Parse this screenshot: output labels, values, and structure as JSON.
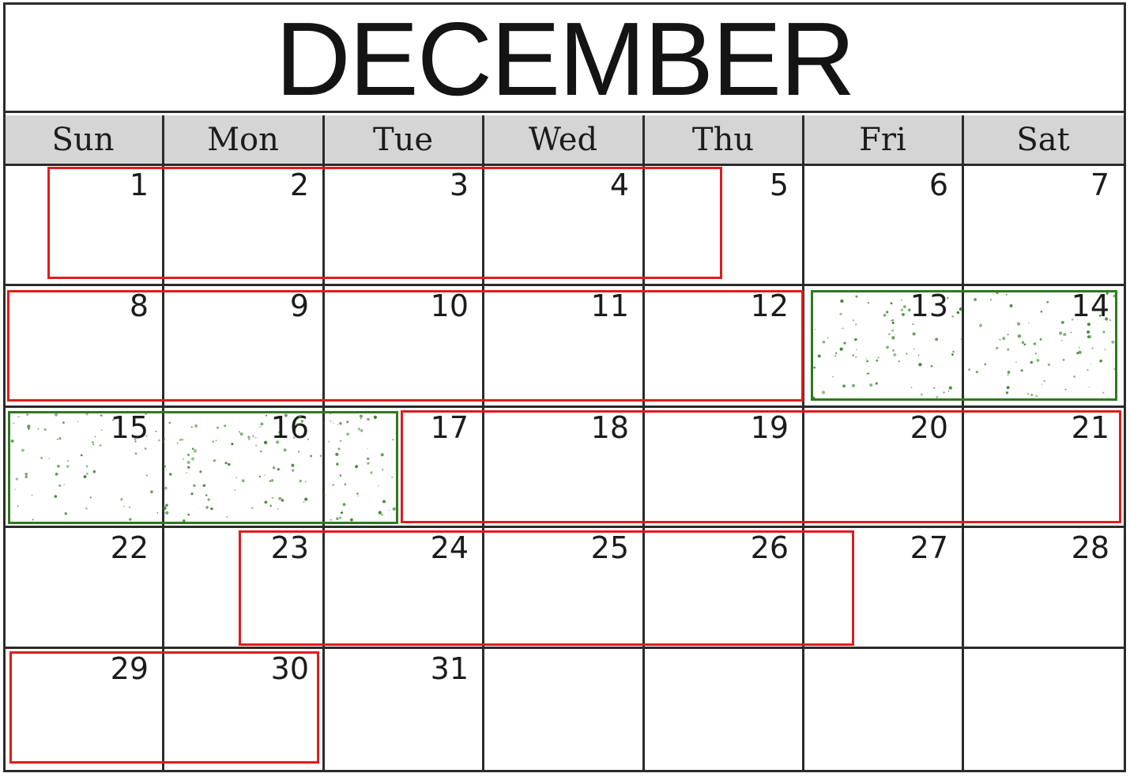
{
  "calendar": {
    "month": "DECEMBER",
    "weekdays": [
      "Sun",
      "Mon",
      "Tue",
      "Wed",
      "Thu",
      "Fri",
      "Sat"
    ],
    "weeks": [
      [
        1,
        2,
        3,
        4,
        5,
        6,
        7
      ],
      [
        8,
        9,
        10,
        11,
        12,
        13,
        14
      ],
      [
        15,
        16,
        17,
        18,
        19,
        20,
        21
      ],
      [
        22,
        23,
        24,
        25,
        26,
        27,
        28
      ],
      [
        29,
        30,
        31,
        null,
        null,
        null,
        null
      ]
    ]
  },
  "highlights": {
    "red_color": "#e01c1c",
    "green_color": "#2e7a1e",
    "red_ranges": [
      {
        "week": 1,
        "from_day": 1,
        "to_day": 5
      },
      {
        "week": 2,
        "from_day": 8,
        "to_day": 12
      },
      {
        "week": 3,
        "from_day": 17,
        "to_day": 21
      },
      {
        "week": 4,
        "from_day": 23,
        "to_day": 27
      },
      {
        "week": 5,
        "from_day": 29,
        "to_day": 30
      }
    ],
    "green_ranges": [
      {
        "week": 2,
        "from_day": 13,
        "to_day": 14
      },
      {
        "week": 3,
        "from_day": 15,
        "to_day": 17
      }
    ]
  }
}
